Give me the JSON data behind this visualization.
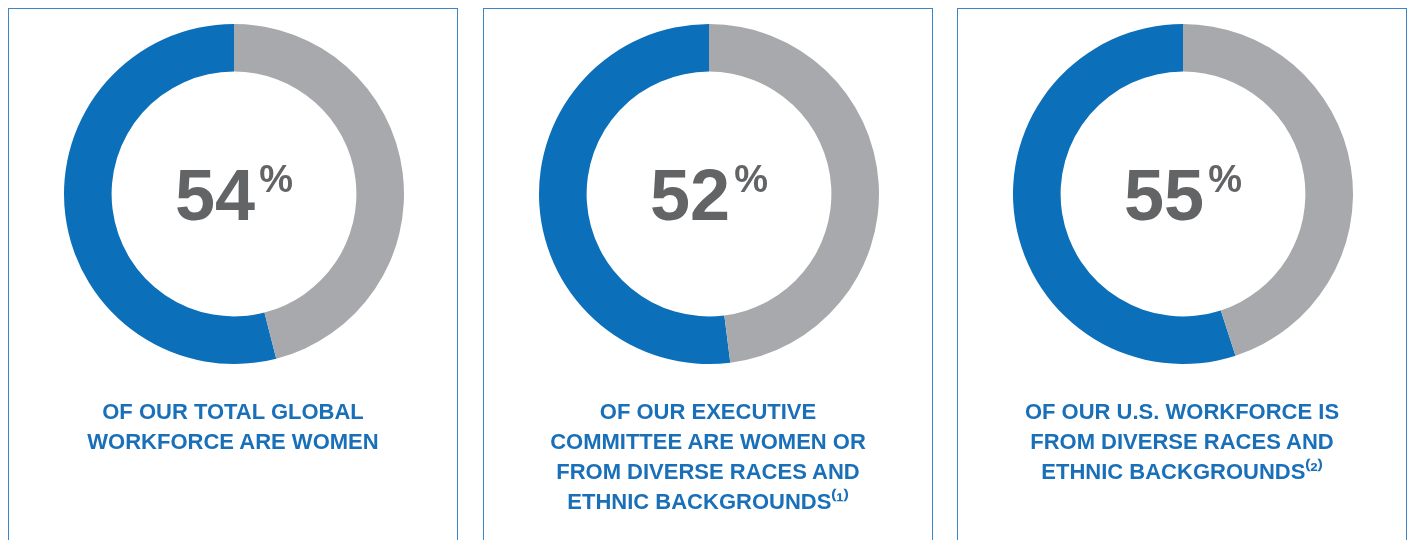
{
  "chart_data": [
    {
      "type": "donut",
      "categories": [
        null,
        null
      ],
      "values": [
        54,
        46
      ],
      "colors": [
        "#0b6fba",
        "#a7a9ac"
      ],
      "value_labels": [
        "54%",
        null
      ],
      "legend": false,
      "annotations": [
        "OF OUR TOTAL GLOBAL WORKFORCE ARE WOMEN"
      ]
    },
    {
      "type": "donut",
      "categories": [
        null,
        null
      ],
      "values": [
        52,
        48
      ],
      "colors": [
        "#0b6fba",
        "#a7a9ac"
      ],
      "value_labels": [
        "52%",
        null
      ],
      "legend": false,
      "annotations": [
        "OF OUR EXECUTIVE COMMITTEE ARE WOMEN OR FROM DIVERSE RACES AND ETHNIC BACKGROUNDS⁽¹⁾"
      ]
    },
    {
      "type": "donut",
      "categories": [
        null,
        null
      ],
      "values": [
        55,
        45
      ],
      "colors": [
        "#0b6fba",
        "#a7a9ac"
      ],
      "value_labels": [
        "55%",
        null
      ],
      "legend": false,
      "annotations": [
        "OF OUR U.S. WORKFORCE IS FROM DIVERSE RACES AND ETHNIC BACKGROUNDS⁽²⁾"
      ]
    }
  ]
}
